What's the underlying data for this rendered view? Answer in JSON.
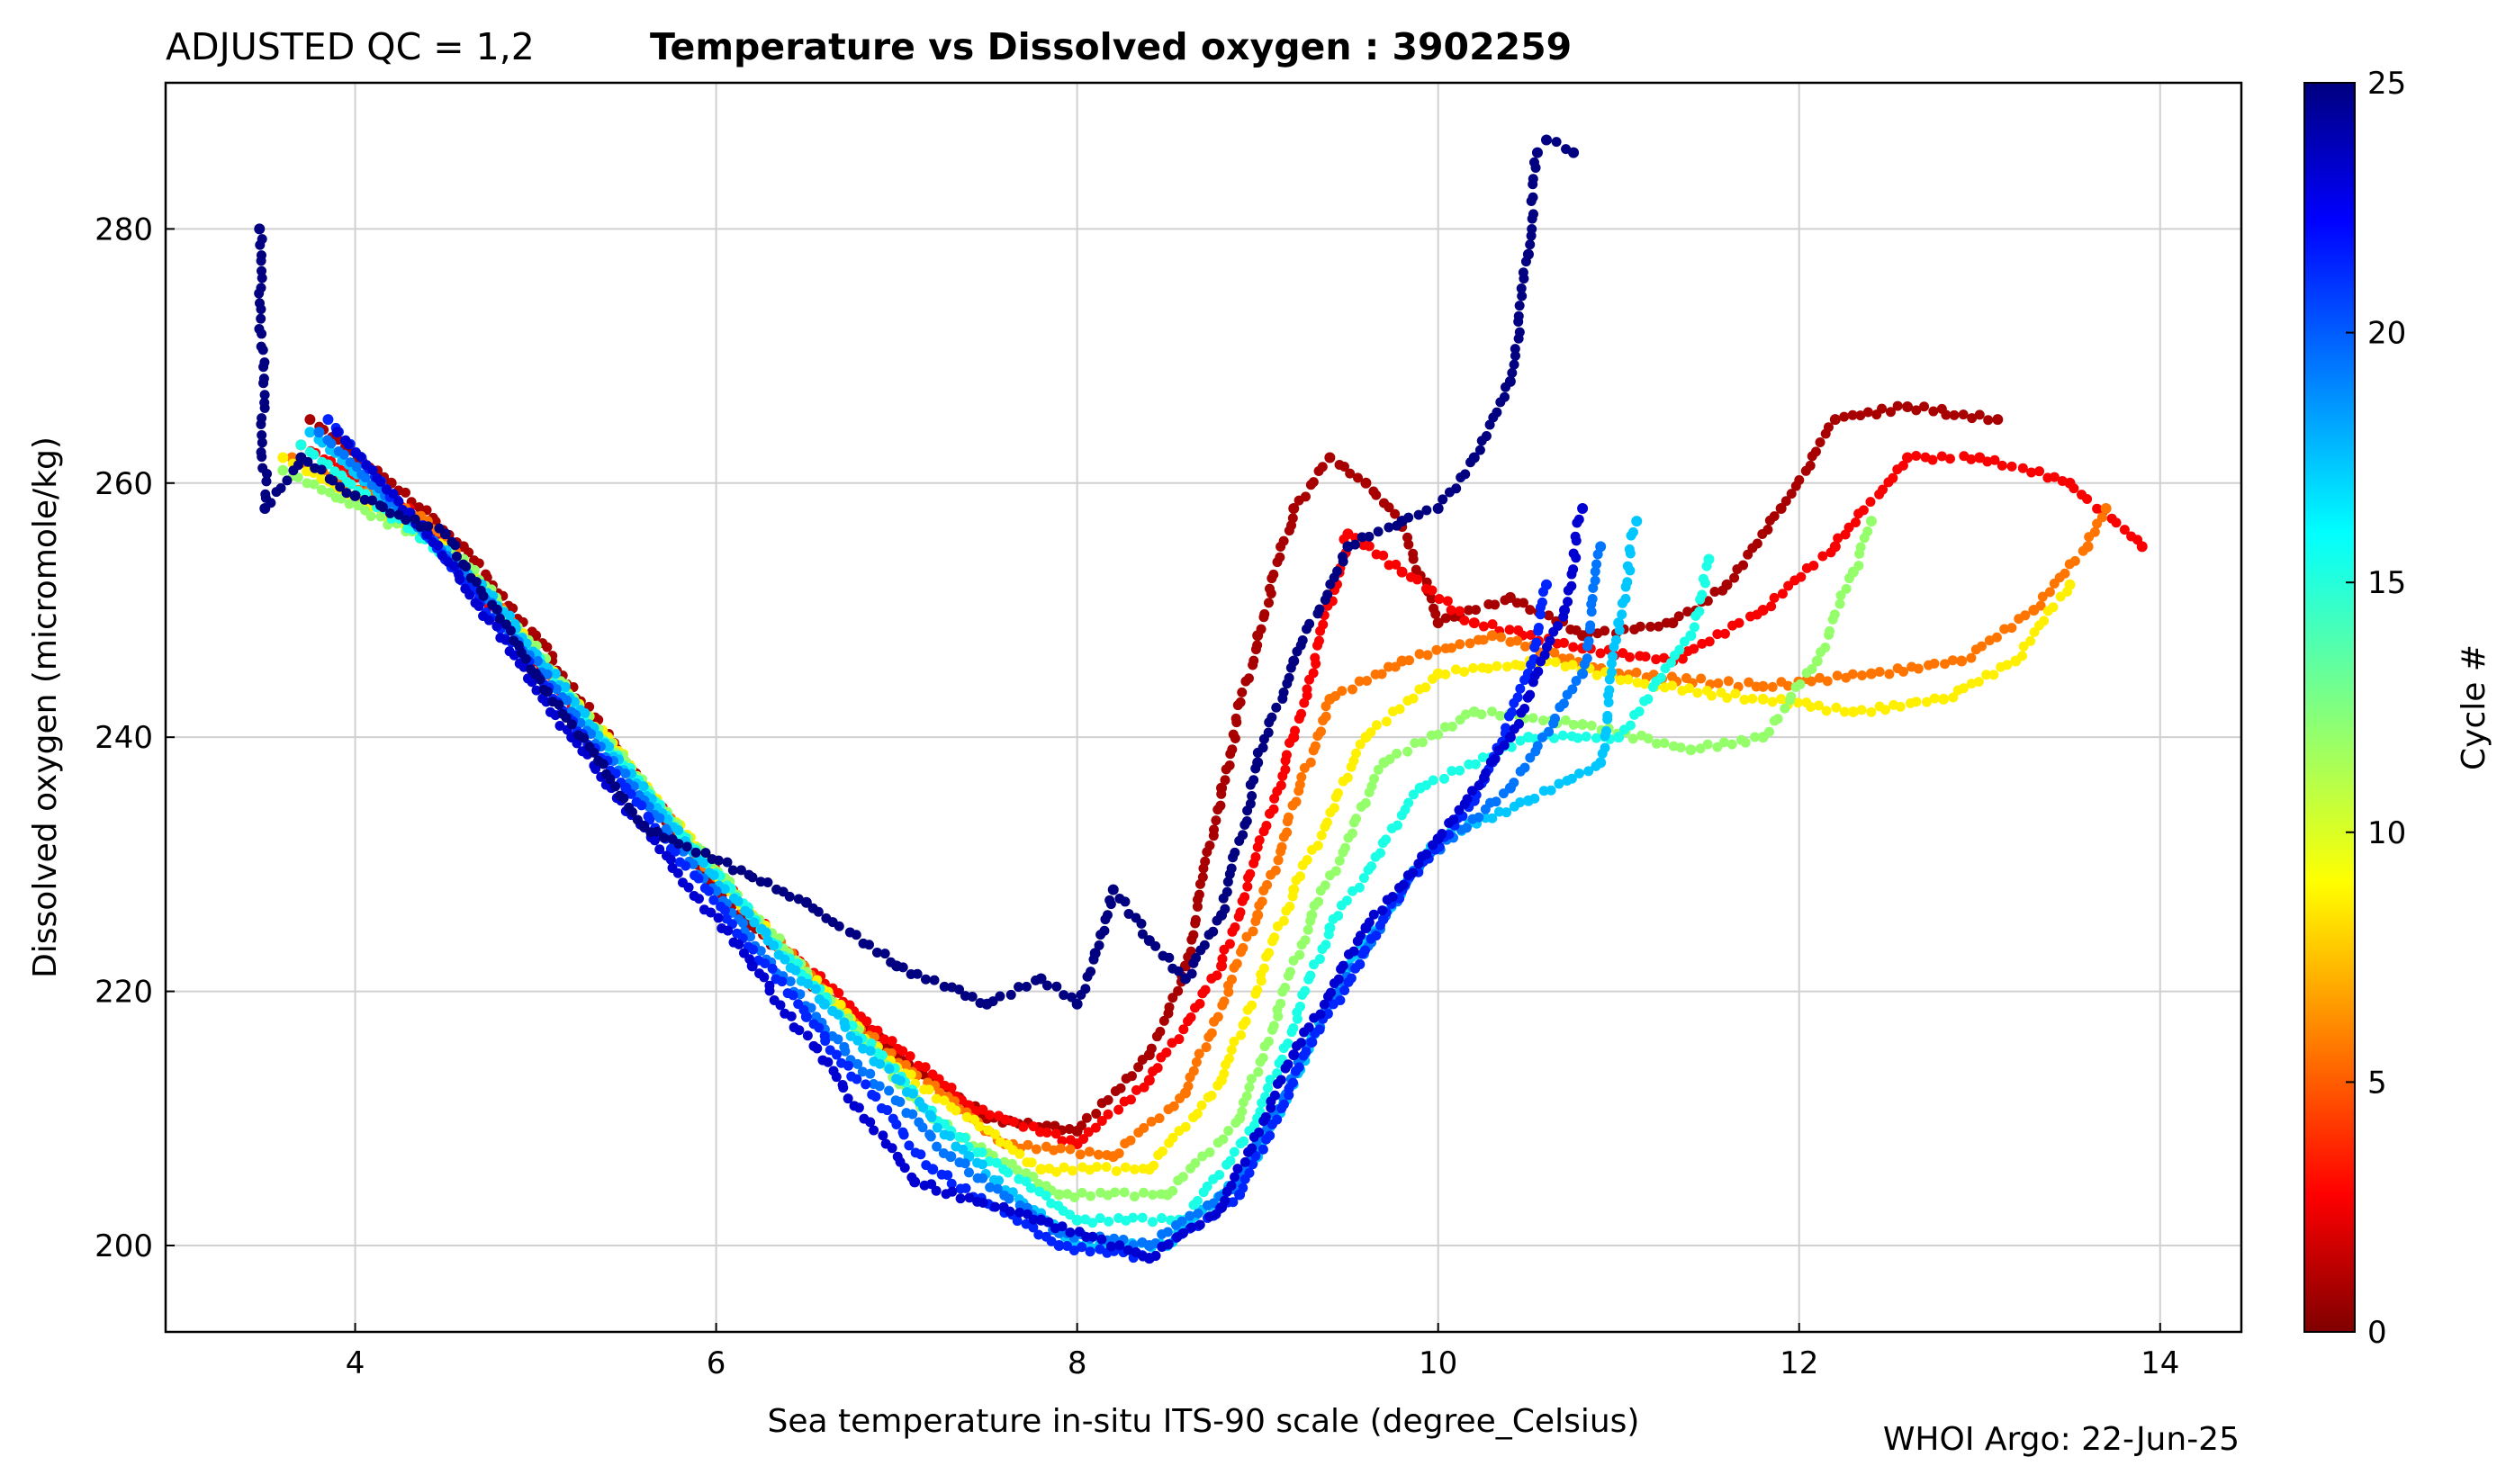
{
  "chart_data": {
    "type": "scatter",
    "title_prefix": "ADJUSTED QC = 1,2",
    "title": "Temperature vs Dissolved oxygen : 3902259",
    "xlabel": "Sea temperature in-situ ITS-90 scale  (degree_Celsius)",
    "ylabel": "Dissolved oxygen  (micromole/kg)",
    "colorbar_label": "Cycle #",
    "footer": "WHOI Argo: 22-Jun-25",
    "xlim": [
      2.95,
      14.45
    ],
    "ylim": [
      193.2,
      291.5
    ],
    "xticks": [
      4,
      6,
      8,
      10,
      12,
      14
    ],
    "yticks": [
      200,
      220,
      240,
      260,
      280
    ],
    "colorbar_range": [
      0,
      25
    ],
    "colorbar_ticks": [
      0,
      5,
      10,
      15,
      20,
      25
    ],
    "colormap": "jet",
    "grid": true,
    "series": [
      {
        "cycle": 1,
        "points": [
          [
            3.75,
            265
          ],
          [
            4.2,
            260
          ],
          [
            4.6,
            255
          ],
          [
            5.0,
            248
          ],
          [
            5.5,
            238
          ],
          [
            6.0,
            228
          ],
          [
            6.5,
            221
          ],
          [
            7.0,
            215
          ],
          [
            7.5,
            210
          ],
          [
            8.0,
            209
          ],
          [
            8.4,
            215
          ],
          [
            8.6,
            222
          ],
          [
            8.8,
            236
          ],
          [
            9.0,
            248
          ],
          [
            9.2,
            258
          ],
          [
            9.4,
            262
          ],
          [
            9.6,
            260
          ],
          [
            9.8,
            257
          ],
          [
            10.0,
            249
          ],
          [
            10.4,
            251
          ],
          [
            10.8,
            248
          ],
          [
            11.3,
            249
          ],
          [
            11.6,
            252
          ],
          [
            11.9,
            258
          ],
          [
            12.2,
            265
          ],
          [
            12.6,
            266
          ],
          [
            13.1,
            265
          ]
        ]
      },
      {
        "cycle": 3,
        "points": [
          [
            3.7,
            263
          ],
          [
            4.3,
            258
          ],
          [
            5.0,
            246
          ],
          [
            5.6,
            236
          ],
          [
            6.2,
            226
          ],
          [
            6.8,
            218
          ],
          [
            7.4,
            211
          ],
          [
            8.0,
            208
          ],
          [
            8.4,
            213
          ],
          [
            8.8,
            222
          ],
          [
            9.2,
            240
          ],
          [
            9.5,
            256
          ],
          [
            9.8,
            253
          ],
          [
            10.2,
            249
          ],
          [
            10.8,
            247
          ],
          [
            11.3,
            246
          ],
          [
            11.8,
            250
          ],
          [
            12.2,
            255
          ],
          [
            12.6,
            262
          ],
          [
            13.0,
            262
          ],
          [
            13.5,
            260
          ],
          [
            13.9,
            255
          ]
        ]
      },
      {
        "cycle": 6,
        "points": [
          [
            3.65,
            262
          ],
          [
            4.4,
            257
          ],
          [
            5.2,
            243
          ],
          [
            6.0,
            229
          ],
          [
            6.8,
            217
          ],
          [
            7.6,
            208
          ],
          [
            8.2,
            207
          ],
          [
            8.6,
            212
          ],
          [
            9.0,
            226
          ],
          [
            9.4,
            243
          ],
          [
            9.8,
            246
          ],
          [
            10.3,
            248
          ],
          [
            11.0,
            245
          ],
          [
            11.8,
            244
          ],
          [
            12.4,
            245
          ],
          [
            12.9,
            246
          ],
          [
            13.3,
            250
          ],
          [
            13.6,
            255
          ],
          [
            13.7,
            258
          ]
        ]
      },
      {
        "cycle": 9,
        "points": [
          [
            3.6,
            262
          ],
          [
            4.5,
            255
          ],
          [
            5.4,
            240
          ],
          [
            6.2,
            226
          ],
          [
            7.0,
            214
          ],
          [
            7.8,
            206
          ],
          [
            8.4,
            206
          ],
          [
            8.8,
            213
          ],
          [
            9.2,
            228
          ],
          [
            9.6,
            240
          ],
          [
            10.0,
            245
          ],
          [
            10.6,
            246
          ],
          [
            11.2,
            244
          ],
          [
            11.8,
            243
          ],
          [
            12.3,
            242
          ],
          [
            12.8,
            243
          ],
          [
            13.2,
            246
          ],
          [
            13.5,
            252
          ]
        ]
      },
      {
        "cycle": 12,
        "points": [
          [
            3.6,
            261
          ],
          [
            4.6,
            254
          ],
          [
            5.5,
            238
          ],
          [
            6.4,
            223
          ],
          [
            7.2,
            210
          ],
          [
            7.9,
            204
          ],
          [
            8.5,
            204
          ],
          [
            8.9,
            210
          ],
          [
            9.3,
            226
          ],
          [
            9.7,
            238
          ],
          [
            10.2,
            242
          ],
          [
            10.8,
            241
          ],
          [
            11.4,
            239
          ],
          [
            11.8,
            240
          ],
          [
            12.1,
            246
          ],
          [
            12.3,
            253
          ],
          [
            12.4,
            257
          ]
        ]
      },
      {
        "cycle": 15,
        "points": [
          [
            3.7,
            263
          ],
          [
            4.6,
            253
          ],
          [
            5.6,
            236
          ],
          [
            6.5,
            221
          ],
          [
            7.3,
            209
          ],
          [
            8.0,
            202
          ],
          [
            8.6,
            202
          ],
          [
            9.0,
            210
          ],
          [
            9.4,
            225
          ],
          [
            9.9,
            236
          ],
          [
            10.5,
            240
          ],
          [
            11.0,
            240
          ],
          [
            11.4,
            248
          ],
          [
            11.5,
            254
          ]
        ]
      },
      {
        "cycle": 17,
        "points": [
          [
            3.75,
            264
          ],
          [
            4.7,
            252
          ],
          [
            5.7,
            234
          ],
          [
            6.6,
            219
          ],
          [
            7.4,
            207
          ],
          [
            8.0,
            200
          ],
          [
            8.5,
            200
          ],
          [
            9.0,
            207
          ],
          [
            9.5,
            222
          ],
          [
            10.0,
            232
          ],
          [
            10.5,
            235
          ],
          [
            10.9,
            238
          ],
          [
            11.0,
            249
          ],
          [
            11.1,
            257
          ]
        ]
      },
      {
        "cycle": 19,
        "points": [
          [
            3.8,
            264
          ],
          [
            4.6,
            253
          ],
          [
            5.6,
            235
          ],
          [
            6.6,
            217
          ],
          [
            7.3,
            207
          ],
          [
            7.9,
            201
          ],
          [
            8.4,
            200
          ],
          [
            8.9,
            205
          ],
          [
            9.4,
            219
          ],
          [
            9.9,
            230
          ],
          [
            10.4,
            236
          ],
          [
            10.8,
            245
          ],
          [
            10.9,
            255
          ]
        ]
      },
      {
        "cycle": 21,
        "points": [
          [
            3.85,
            265
          ],
          [
            4.5,
            254
          ],
          [
            5.5,
            236
          ],
          [
            6.5,
            218
          ],
          [
            7.2,
            206
          ],
          [
            7.9,
            200
          ],
          [
            8.4,
            199
          ],
          [
            8.9,
            204
          ],
          [
            9.3,
            216
          ],
          [
            9.8,
            228
          ],
          [
            10.2,
            235
          ],
          [
            10.5,
            245
          ],
          [
            10.6,
            252
          ]
        ]
      },
      {
        "cycle": 23,
        "points": [
          [
            3.9,
            264
          ],
          [
            4.4,
            256
          ],
          [
            5.2,
            240
          ],
          [
            6.2,
            222
          ],
          [
            7.1,
            205
          ],
          [
            7.8,
            202
          ],
          [
            8.4,
            199
          ],
          [
            8.8,
            203
          ],
          [
            9.2,
            215
          ],
          [
            9.6,
            225
          ],
          [
            10.0,
            232
          ],
          [
            10.4,
            240
          ],
          [
            10.7,
            250
          ],
          [
            10.8,
            258
          ]
        ]
      },
      {
        "cycle": 25,
        "points": [
          [
            3.47,
            280
          ],
          [
            3.5,
            258
          ],
          [
            3.7,
            262
          ],
          [
            4.0,
            259
          ],
          [
            4.5,
            256
          ],
          [
            5.0,
            245
          ],
          [
            5.6,
            233
          ],
          [
            6.5,
            227
          ],
          [
            7.0,
            222
          ],
          [
            7.5,
            219
          ],
          [
            7.8,
            221
          ],
          [
            8.0,
            219
          ],
          [
            8.1,
            223
          ],
          [
            8.2,
            228
          ],
          [
            8.4,
            224
          ],
          [
            8.6,
            221
          ],
          [
            8.8,
            226
          ],
          [
            9.0,
            238
          ],
          [
            9.2,
            246
          ],
          [
            9.5,
            255
          ],
          [
            9.8,
            257
          ],
          [
            10.0,
            258
          ],
          [
            10.2,
            262
          ],
          [
            10.4,
            268
          ],
          [
            10.5,
            278
          ],
          [
            10.55,
            286
          ],
          [
            10.6,
            287
          ],
          [
            10.75,
            286
          ]
        ]
      }
    ]
  }
}
